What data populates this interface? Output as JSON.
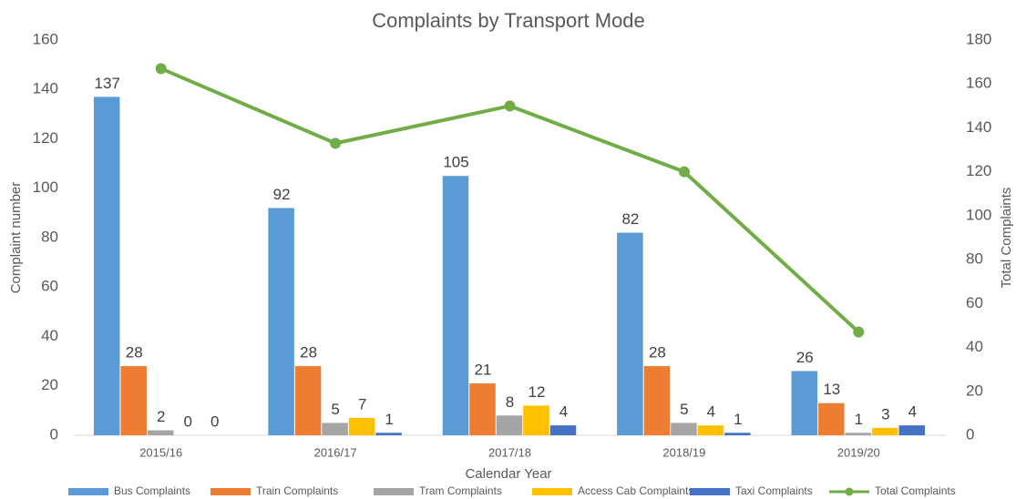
{
  "chart_data": {
    "type": "bar",
    "title": "Complaints by Transport Mode",
    "x_label": "Calendar Year",
    "y_label": "Complaint number",
    "y2_label": "Total Complaints",
    "categories": [
      "2015/16",
      "2016/17",
      "2017/18",
      "2018/19",
      "2019/20"
    ],
    "series": [
      {
        "name": "Bus Complaints",
        "color": "#5b9bd5",
        "values": [
          137,
          92,
          105,
          82,
          26
        ]
      },
      {
        "name": "Train Complaints",
        "color": "#ed7d31",
        "values": [
          28,
          28,
          21,
          28,
          13
        ]
      },
      {
        "name": "Tram Complaints",
        "color": "#a5a5a5",
        "values": [
          2,
          5,
          8,
          5,
          1
        ]
      },
      {
        "name": "Access Cab Complaints",
        "color": "#ffc000",
        "values": [
          0,
          7,
          12,
          4,
          3
        ]
      },
      {
        "name": "Taxi Complaints",
        "color": "#4472c4",
        "values": [
          0,
          1,
          4,
          1,
          4
        ]
      },
      {
        "name": "Total Complaints",
        "color": "#70ad47",
        "type": "line",
        "axis": "y2",
        "values": [
          167,
          133,
          150,
          120,
          47
        ]
      }
    ],
    "ylim": [
      0,
      160
    ],
    "yticks": [
      0,
      20,
      40,
      60,
      80,
      100,
      120,
      140,
      160
    ],
    "y2lim": [
      0,
      180
    ],
    "y2ticks": [
      0,
      20,
      40,
      60,
      80,
      100,
      120,
      140,
      160,
      180
    ],
    "data_labels": true,
    "grid": false,
    "legend": "bottom"
  }
}
